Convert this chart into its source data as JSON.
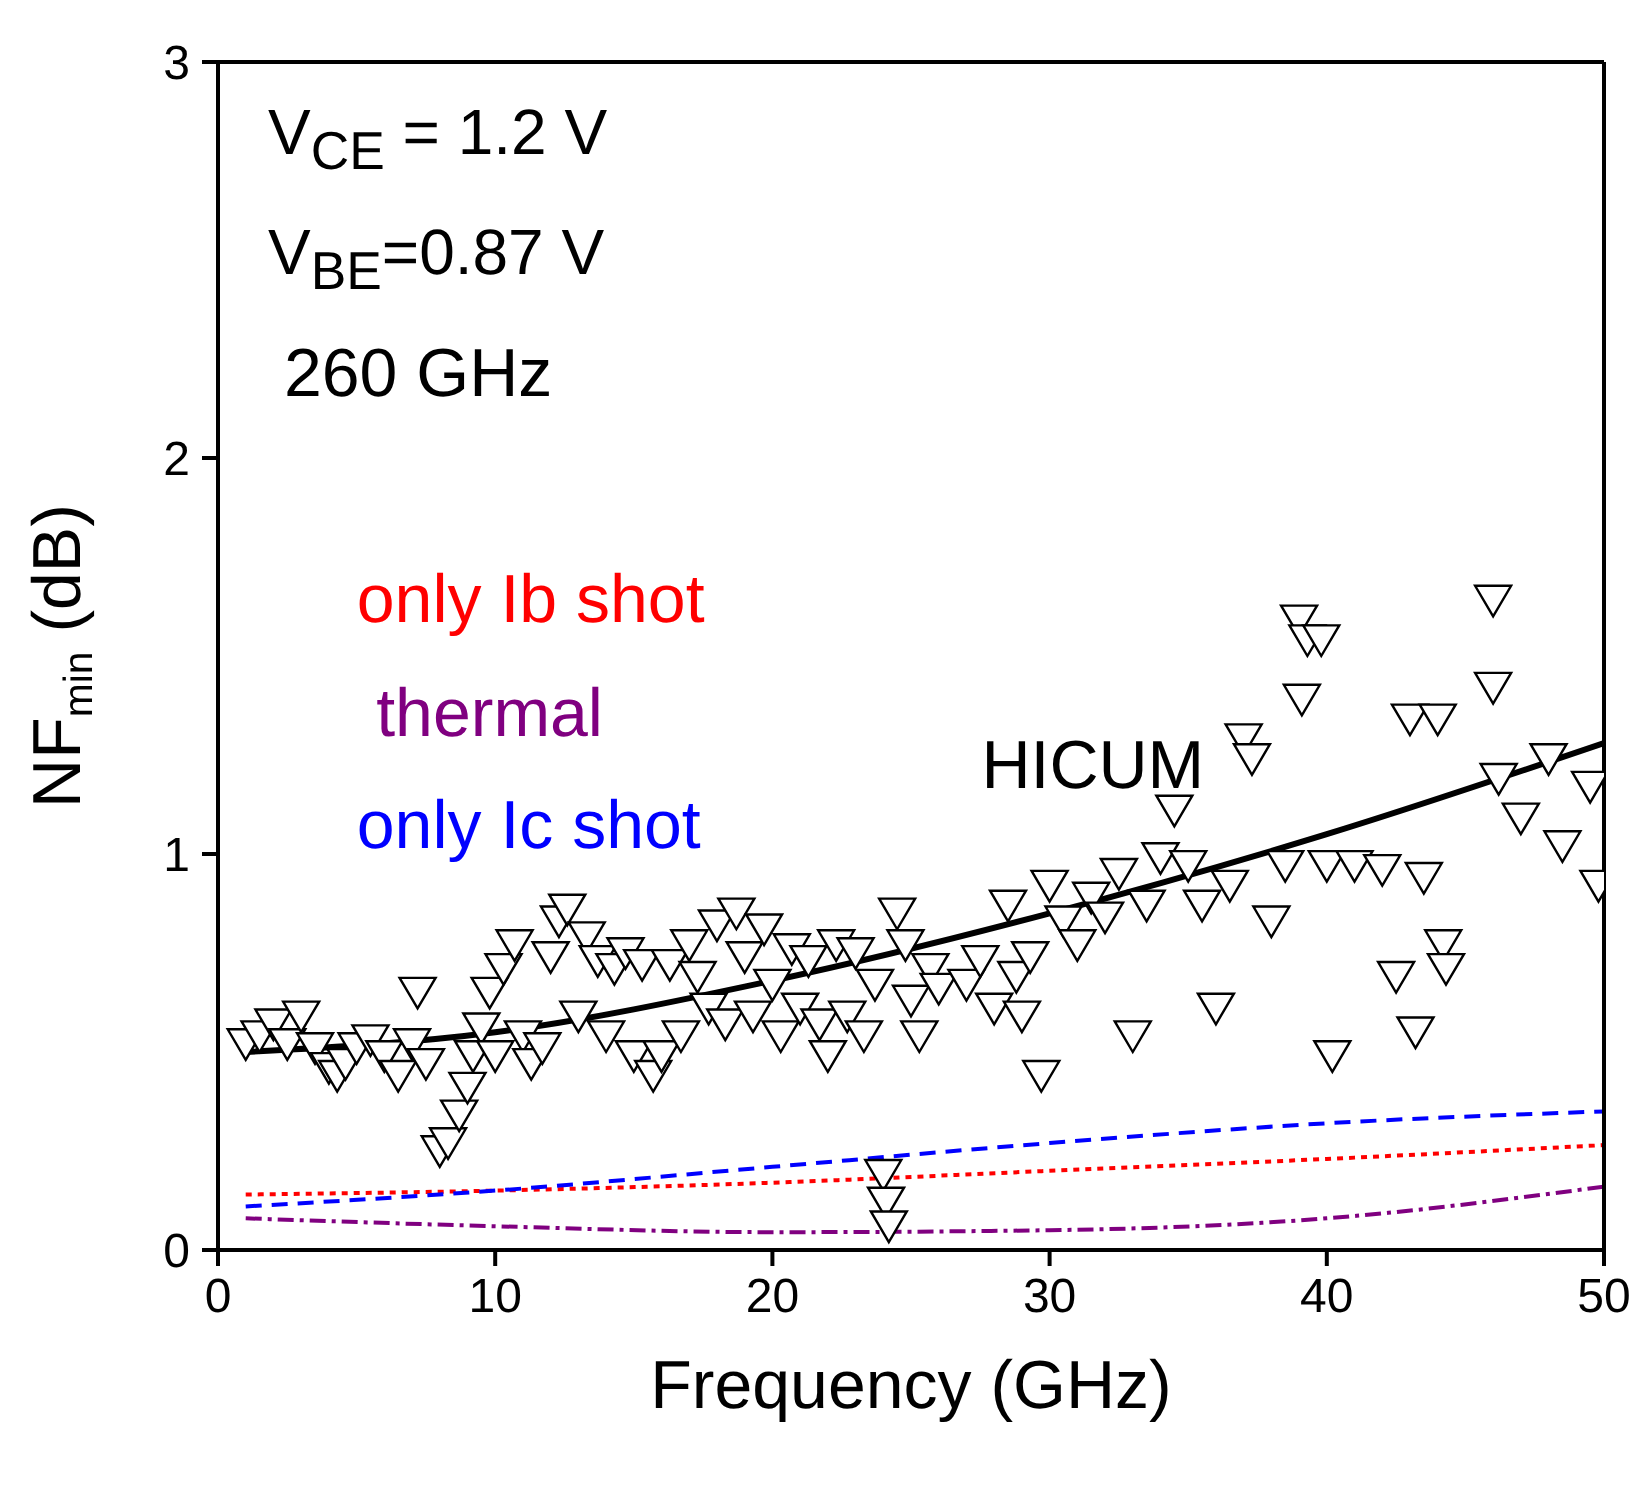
{
  "chart_data": {
    "type": "scatter",
    "xlabel": "Frequency (GHz)",
    "ylabel": "NF$_{min}$ (dB)",
    "xlim": [
      0,
      50
    ],
    "xticks": [
      0,
      10,
      20,
      30,
      40,
      50
    ],
    "ylim": [
      0,
      3
    ],
    "yticks": [
      0,
      1,
      2,
      3
    ],
    "grid": false,
    "legend": false,
    "marker": "triangle",
    "annotations": [
      "V$_{CE}$ = 1.2 V",
      "V$_{BE}$=0.87 V",
      "260 GHz"
    ],
    "series": [
      {
        "color": "#000000",
        "x": [
          1,
          1.5,
          2,
          2.5,
          3,
          3.5,
          4,
          4.3,
          4.6,
          5,
          5.5,
          6,
          6.5,
          7,
          7.2,
          7.5,
          8,
          8.3,
          8.7,
          9,
          9.2,
          9.5,
          9.8,
          10,
          10.3,
          10.7,
          11,
          11.3,
          11.7,
          12,
          12.3,
          12.6,
          13,
          13.3,
          13.7,
          14,
          14.3,
          14.7,
          15,
          15.3,
          15.7,
          16,
          16.3,
          16.7,
          17,
          17.3,
          17.7,
          18,
          18.3,
          18.7,
          19,
          19.3,
          19.7,
          20,
          20.3,
          20.7,
          21,
          21.3,
          21.7,
          22,
          22.3,
          22.7,
          23,
          23.3,
          23.7,
          24,
          24.1,
          24.2,
          24.5,
          24.8,
          25,
          25.3,
          25.7,
          26,
          27,
          27.5,
          28,
          28.5,
          28.8,
          29,
          29.3,
          29.7,
          30,
          30.5,
          31,
          31.5,
          32,
          32.5,
          33,
          33.5,
          34,
          34.5,
          35,
          35.5,
          36,
          36.5,
          37,
          37.3,
          38,
          38.5,
          39,
          39.1,
          39.3,
          39.8,
          40,
          40.2,
          41,
          42,
          42.5,
          43,
          43.2,
          43.5,
          44,
          44.2,
          44.3,
          46,
          46,
          46.2,
          47,
          48,
          48.5,
          49.5,
          49.8
        ],
        "values": [
          0.53,
          0.55,
          0.58,
          0.53,
          0.6,
          0.52,
          0.47,
          0.45,
          0.48,
          0.52,
          0.54,
          0.5,
          0.45,
          0.53,
          0.66,
          0.48,
          0.26,
          0.28,
          0.35,
          0.42,
          0.5,
          0.57,
          0.66,
          0.5,
          0.72,
          0.78,
          0.55,
          0.48,
          0.52,
          0.75,
          0.84,
          0.87,
          0.6,
          0.8,
          0.74,
          0.55,
          0.72,
          0.76,
          0.5,
          0.73,
          0.45,
          0.5,
          0.73,
          0.55,
          0.78,
          0.7,
          0.62,
          0.83,
          0.58,
          0.86,
          0.75,
          0.6,
          0.82,
          0.68,
          0.55,
          0.77,
          0.62,
          0.74,
          0.58,
          0.5,
          0.78,
          0.6,
          0.76,
          0.55,
          0.68,
          0.2,
          0.13,
          0.07,
          0.86,
          0.78,
          0.64,
          0.55,
          0.72,
          0.67,
          0.68,
          0.74,
          0.62,
          0.88,
          0.7,
          0.6,
          0.75,
          0.45,
          0.93,
          0.84,
          0.78,
          0.9,
          0.85,
          0.96,
          0.55,
          0.88,
          1.0,
          1.12,
          0.98,
          0.88,
          0.62,
          0.93,
          1.3,
          1.25,
          0.84,
          0.98,
          1.6,
          1.4,
          1.55,
          1.55,
          0.98,
          0.5,
          0.98,
          0.97,
          0.7,
          1.35,
          0.56,
          0.95,
          1.35,
          0.78,
          0.72,
          1.65,
          1.43,
          1.2,
          1.1,
          1.25,
          1.03,
          1.18,
          0.93
        ]
      },
      {
        "type": "line",
        "name": "HICUM",
        "color": "#000000",
        "line_style": "solid",
        "marker": "none",
        "x": [
          1,
          10,
          20,
          30,
          40,
          50
        ],
        "values": [
          0.5,
          0.55,
          0.68,
          0.85,
          1.05,
          1.28
        ]
      },
      {
        "type": "line",
        "name": "only Ib shot",
        "color": "#ff0000",
        "line_style": "dotted",
        "marker": "none",
        "x": [
          1,
          10,
          20,
          30,
          40,
          50
        ],
        "values": [
          0.14,
          0.15,
          0.17,
          0.2,
          0.23,
          0.265
        ]
      },
      {
        "type": "line",
        "name": "thermal",
        "color": "#800080",
        "line_style": "dashdot",
        "marker": "none",
        "x": [
          1,
          10,
          20,
          30,
          40,
          50
        ],
        "values": [
          0.08,
          0.06,
          0.045,
          0.05,
          0.08,
          0.16
        ]
      },
      {
        "type": "line",
        "name": "only Ic shot",
        "color": "#0000ff",
        "line_style": "dashed",
        "marker": "none",
        "x": [
          1,
          10,
          20,
          30,
          40,
          50
        ],
        "values": [
          0.11,
          0.15,
          0.21,
          0.27,
          0.32,
          0.35
        ]
      }
    ]
  }
}
